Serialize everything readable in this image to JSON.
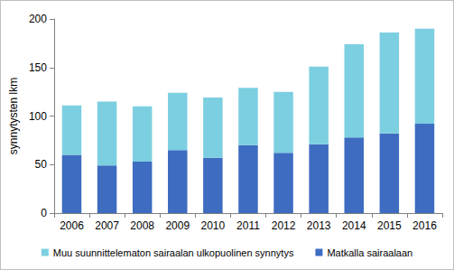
{
  "chart_data": {
    "type": "bar",
    "stacked": true,
    "y_label": "synnytysten lkm",
    "categories": [
      "2006",
      "2007",
      "2008",
      "2009",
      "2010",
      "2011",
      "2012",
      "2013",
      "2014",
      "2015",
      "2016"
    ],
    "series": [
      {
        "name": "Matkalla sairaalaan",
        "color": "#3d6cc0",
        "values": [
          60,
          49,
          53,
          65,
          57,
          70,
          62,
          71,
          78,
          82,
          92
        ]
      },
      {
        "name": "Muu suunnittelematon sairaalan ulkopuolinen synnytys",
        "color": "#7ccfe0",
        "values": [
          51,
          66,
          57,
          59,
          62,
          59,
          63,
          80,
          96,
          104,
          98
        ]
      }
    ],
    "ylim": [
      0,
      200
    ],
    "yticks": [
      0,
      50,
      100,
      150,
      200
    ],
    "grid": false,
    "legend": "bottom"
  }
}
